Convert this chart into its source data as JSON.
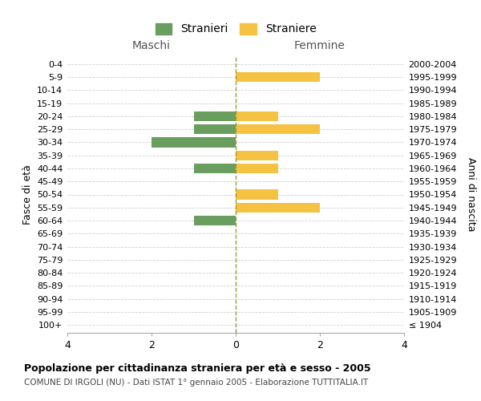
{
  "age_groups": [
    "100+",
    "95-99",
    "90-94",
    "85-89",
    "80-84",
    "75-79",
    "70-74",
    "65-69",
    "60-64",
    "55-59",
    "50-54",
    "45-49",
    "40-44",
    "35-39",
    "30-34",
    "25-29",
    "20-24",
    "15-19",
    "10-14",
    "5-9",
    "0-4"
  ],
  "birth_years": [
    "≤ 1904",
    "1905-1909",
    "1910-1914",
    "1915-1919",
    "1920-1924",
    "1925-1929",
    "1930-1934",
    "1935-1939",
    "1940-1944",
    "1945-1949",
    "1950-1954",
    "1955-1959",
    "1960-1964",
    "1965-1969",
    "1970-1974",
    "1975-1979",
    "1980-1984",
    "1985-1989",
    "1990-1994",
    "1995-1999",
    "2000-2004"
  ],
  "maschi": [
    0,
    0,
    0,
    0,
    0,
    0,
    0,
    0,
    -1,
    0,
    0,
    0,
    -1,
    0,
    -2,
    -1,
    -1,
    0,
    0,
    0,
    0
  ],
  "femmine": [
    0,
    0,
    0,
    0,
    0,
    0,
    0,
    0,
    0,
    2,
    1,
    0,
    1,
    1,
    0,
    2,
    1,
    0,
    0,
    2,
    0
  ],
  "color_maschi": "#6a9e5f",
  "color_femmine": "#f5c242",
  "title": "Popolazione per cittadinanza straniera per età e sesso - 2005",
  "subtitle": "COMUNE DI IRGOLI (NU) - Dati ISTAT 1° gennaio 2005 - Elaborazione TUTTITALIA.IT",
  "legend_maschi": "Stranieri",
  "legend_femmine": "Straniere",
  "xlabel_left": "Maschi",
  "xlabel_right": "Femmine",
  "ylabel_left": "Fasce di età",
  "ylabel_right": "Anni di nascita",
  "xlim": [
    -4,
    4
  ],
  "xticks": [
    -4,
    -2,
    0,
    2,
    4
  ],
  "xticklabels": [
    "4",
    "2",
    "0",
    "2",
    "4"
  ],
  "background_color": "#ffffff",
  "grid_color": "#d0d0d0",
  "bar_height": 0.75
}
